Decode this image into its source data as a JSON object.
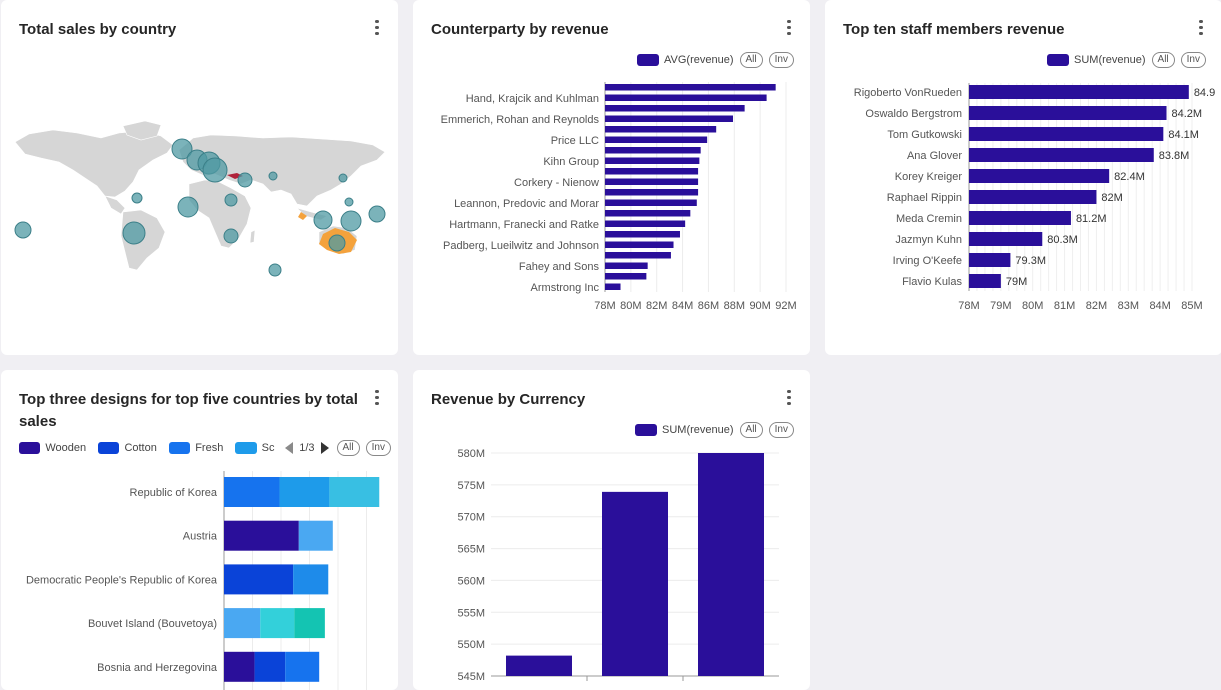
{
  "colors": {
    "primary": "#2a0f9a",
    "map_land": "#d6d6d6",
    "map_bubble": "#5fa0a8",
    "highlight_orange": "#f4a23c",
    "highlight_red": "#b0223a"
  },
  "cards": {
    "map": {
      "title": "Total sales by country",
      "menu_icon": "kebab-vertical-icon"
    },
    "counterparty": {
      "title": "Counterparty by revenue",
      "legend_label": "AVG(revenue)",
      "all_label": "All",
      "inv_label": "Inv"
    },
    "staff": {
      "title": "Top ten staff members revenue",
      "legend_label": "SUM(revenue)",
      "all_label": "All",
      "inv_label": "Inv"
    },
    "designs": {
      "title_line1": "Top three designs for top five countries by total",
      "title_line2": "sales",
      "legend_items": [
        {
          "label": "Wooden",
          "color": "#2a0f9a"
        },
        {
          "label": "Cotton",
          "color": "#0a43d8"
        },
        {
          "label": "Fresh",
          "color": "#1673ee"
        },
        {
          "label": "Sc",
          "color": "#1e9bea"
        }
      ],
      "pager": "1/3",
      "all_label": "All",
      "inv_label": "Inv"
    },
    "currency": {
      "title": "Revenue by Currency",
      "legend_label": "SUM(revenue)",
      "all_label": "All",
      "inv_label": "Inv"
    }
  },
  "chart_data": [
    {
      "type": "bar",
      "orientation": "horizontal",
      "title": "Counterparty by revenue",
      "categories": [
        "",
        "Hand, Krajcik and Kuhlman",
        "",
        "Emmerich, Rohan and Reynolds",
        "",
        "Price LLC",
        "",
        "Kihn Group",
        "",
        "Corkery - Nienow",
        "",
        "Leannon, Predovic and Morar",
        "",
        "Hartmann, Franecki and Ratke",
        "",
        "Padberg, Lueilwitz and Johnson",
        "",
        "Fahey and Sons",
        "",
        "Armstrong Inc"
      ],
      "series": [
        {
          "name": "AVG(revenue)",
          "values": [
            91.2,
            90.5,
            88.8,
            87.9,
            86.6,
            85.9,
            85.4,
            85.3,
            85.2,
            85.2,
            85.2,
            85.1,
            84.6,
            84.2,
            83.8,
            83.3,
            83.1,
            81.3,
            81.2,
            79.2
          ]
        }
      ],
      "xlim": [
        78,
        92
      ],
      "x_ticks": [
        "78M",
        "80M",
        "82M",
        "84M",
        "86M",
        "88M",
        "90M",
        "92M"
      ]
    },
    {
      "type": "bar",
      "orientation": "horizontal",
      "title": "Top ten staff members revenue",
      "categories": [
        "Rigoberto VonRueden",
        "Oswaldo Bergstrom",
        "Tom Gutkowski",
        "Ana Glover",
        "Korey Kreiger",
        "Raphael Rippin",
        "Meda Cremin",
        "Jazmyn Kuhn",
        "Irving O'Keefe",
        "Flavio Kulas"
      ],
      "series": [
        {
          "name": "SUM(revenue)",
          "values": [
            84.9,
            84.2,
            84.1,
            83.8,
            82.4,
            82.0,
            81.2,
            80.3,
            79.3,
            79.0
          ]
        }
      ],
      "data_labels": [
        "84.9",
        "84.2M",
        "84.1M",
        "83.8M",
        "82.4M",
        "82M",
        "81.2M",
        "80.3M",
        "79.3M",
        "79M"
      ],
      "xlim": [
        78,
        85
      ],
      "x_ticks": [
        "78M",
        "79M",
        "80M",
        "81M",
        "82M",
        "83M",
        "84M",
        "85M"
      ]
    },
    {
      "type": "bar",
      "orientation": "horizontal",
      "stacked": true,
      "title": "Top three designs for top five countries by total sales",
      "categories": [
        "Republic of Korea",
        "Austria",
        "Democratic People's Republic of Korea",
        "Bouvet Island (Bouvetoya)",
        "Bosnia and Herzegovina"
      ],
      "segments": [
        [
          {
            "value": 49,
            "color": "#1673ee"
          },
          {
            "value": 44,
            "color": "#1e9bea"
          },
          {
            "value": 44,
            "color": "#38bfe3"
          }
        ],
        [
          {
            "value": 66,
            "color": "#2a0f9a"
          },
          {
            "value": 30,
            "color": "#4aa8f2"
          }
        ],
        [
          {
            "value": 61,
            "color": "#0a43d8"
          },
          {
            "value": 31,
            "color": "#1e8bea"
          }
        ],
        [
          {
            "value": 32,
            "color": "#4aa8f2"
          },
          {
            "value": 30,
            "color": "#33d0da"
          },
          {
            "value": 27,
            "color": "#14c4b2"
          }
        ],
        [
          {
            "value": 27,
            "color": "#2a0f9a"
          },
          {
            "value": 27,
            "color": "#0a43d8"
          },
          {
            "value": 30,
            "color": "#1673ee"
          }
        ]
      ],
      "xlim": [
        0,
        150
      ]
    },
    {
      "type": "bar",
      "title": "Revenue by Currency",
      "categories": [
        "",
        "",
        ""
      ],
      "series": [
        {
          "name": "SUM(revenue)",
          "values": [
            548.2,
            573.9,
            580.0
          ]
        }
      ],
      "ylim": [
        545,
        580
      ],
      "y_ticks": [
        "580M",
        "575M",
        "570M",
        "565M",
        "560M",
        "555M",
        "550M",
        "545M"
      ]
    }
  ]
}
